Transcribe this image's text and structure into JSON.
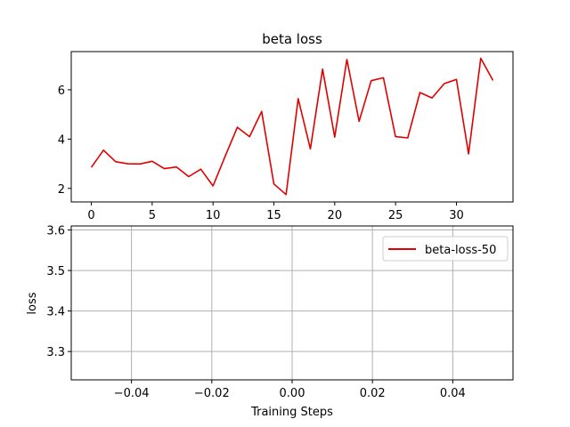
{
  "chart_data": [
    {
      "type": "line",
      "title": "beta loss",
      "xlabel": "",
      "ylabel": "",
      "xlim": [
        -1.65,
        34.65
      ],
      "ylim": [
        1.45,
        7.55
      ],
      "xticks": [
        0,
        5,
        10,
        15,
        20,
        25,
        30
      ],
      "yticks": [
        2,
        4,
        6
      ],
      "grid": false,
      "legend": null,
      "series": [
        {
          "color": "#e00000",
          "x": [
            0,
            1,
            2,
            3,
            4,
            5,
            6,
            7,
            8,
            9,
            10,
            11,
            12,
            13,
            14,
            15,
            16,
            17,
            18,
            19,
            20,
            21,
            22,
            23,
            24,
            25,
            26,
            27,
            28,
            29,
            30,
            31,
            32,
            33
          ],
          "y": [
            2.85,
            3.55,
            3.08,
            3.0,
            2.99,
            3.1,
            2.8,
            2.87,
            2.48,
            2.78,
            2.1,
            3.3,
            4.48,
            4.1,
            5.12,
            2.18,
            1.75,
            5.64,
            3.6,
            6.84,
            4.08,
            7.23,
            4.72,
            6.37,
            6.49,
            4.1,
            4.05,
            5.89,
            5.67,
            6.25,
            6.42,
            3.4,
            7.28,
            6.38
          ]
        }
      ]
    },
    {
      "type": "line",
      "title": "",
      "xlabel": "Training Steps",
      "ylabel": "loss",
      "xlim": [
        -0.055,
        0.055
      ],
      "ylim": [
        3.23,
        3.61
      ],
      "xticks": [
        -0.04,
        -0.02,
        0.0,
        0.02,
        0.04
      ],
      "xtick_labels": [
        "−0.04",
        "−0.02",
        "0.00",
        "0.02",
        "0.04"
      ],
      "yticks": [
        3.3,
        3.4,
        3.5,
        3.6
      ],
      "ytick_labels": [
        "3.3",
        "3.4",
        "3.5",
        "3.6"
      ],
      "grid": true,
      "legend": "top-right",
      "series": [
        {
          "name": "beta-loss-50",
          "color": "#e00000",
          "x": [],
          "y": []
        }
      ]
    }
  ]
}
